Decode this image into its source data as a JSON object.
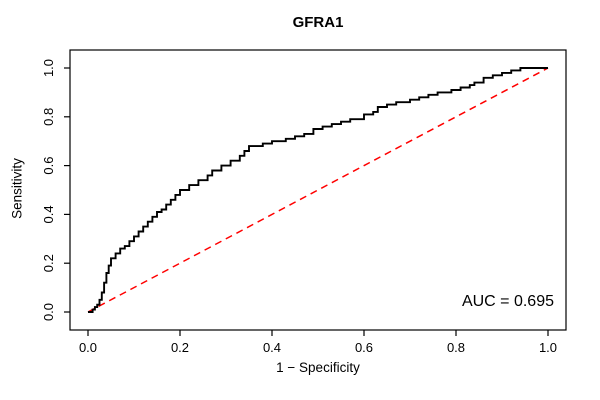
{
  "chart_data": {
    "type": "line",
    "title": "GFRA1",
    "xlabel": "1 − Specificity",
    "ylabel": "Sensitivity",
    "xlim": [
      0,
      1
    ],
    "ylim": [
      0,
      1
    ],
    "grid": false,
    "x_ticks": [
      "0.0",
      "0.2",
      "0.4",
      "0.6",
      "0.8",
      "1.0"
    ],
    "y_ticks": [
      "0.0",
      "0.2",
      "0.4",
      "0.6",
      "0.8",
      "1.0"
    ],
    "annotation": "AUC = 0.695",
    "auc": 0.695,
    "series": [
      {
        "name": "chance-line",
        "style": "dashed",
        "color": "#ff0000",
        "points": [
          [
            0,
            0
          ],
          [
            1,
            1
          ]
        ]
      },
      {
        "name": "roc-curve",
        "style": "step",
        "color": "#000000",
        "points": [
          [
            0,
            0
          ],
          [
            0.01,
            0.01
          ],
          [
            0.015,
            0.02
          ],
          [
            0.02,
            0.03
          ],
          [
            0.025,
            0.05
          ],
          [
            0.03,
            0.08
          ],
          [
            0.035,
            0.12
          ],
          [
            0.04,
            0.16
          ],
          [
            0.045,
            0.19
          ],
          [
            0.05,
            0.22
          ],
          [
            0.06,
            0.24
          ],
          [
            0.07,
            0.26
          ],
          [
            0.08,
            0.27
          ],
          [
            0.09,
            0.29
          ],
          [
            0.1,
            0.31
          ],
          [
            0.11,
            0.33
          ],
          [
            0.12,
            0.35
          ],
          [
            0.13,
            0.37
          ],
          [
            0.14,
            0.39
          ],
          [
            0.15,
            0.41
          ],
          [
            0.16,
            0.42
          ],
          [
            0.17,
            0.44
          ],
          [
            0.18,
            0.46
          ],
          [
            0.19,
            0.48
          ],
          [
            0.2,
            0.5
          ],
          [
            0.22,
            0.52
          ],
          [
            0.24,
            0.54
          ],
          [
            0.26,
            0.56
          ],
          [
            0.27,
            0.58
          ],
          [
            0.29,
            0.6
          ],
          [
            0.31,
            0.62
          ],
          [
            0.33,
            0.64
          ],
          [
            0.34,
            0.66
          ],
          [
            0.35,
            0.68
          ],
          [
            0.38,
            0.69
          ],
          [
            0.4,
            0.7
          ],
          [
            0.43,
            0.71
          ],
          [
            0.45,
            0.72
          ],
          [
            0.47,
            0.73
          ],
          [
            0.49,
            0.75
          ],
          [
            0.51,
            0.76
          ],
          [
            0.53,
            0.77
          ],
          [
            0.55,
            0.78
          ],
          [
            0.57,
            0.79
          ],
          [
            0.6,
            0.81
          ],
          [
            0.62,
            0.82
          ],
          [
            0.63,
            0.84
          ],
          [
            0.65,
            0.85
          ],
          [
            0.67,
            0.86
          ],
          [
            0.7,
            0.87
          ],
          [
            0.72,
            0.88
          ],
          [
            0.74,
            0.89
          ],
          [
            0.76,
            0.9
          ],
          [
            0.79,
            0.91
          ],
          [
            0.81,
            0.92
          ],
          [
            0.83,
            0.93
          ],
          [
            0.84,
            0.94
          ],
          [
            0.86,
            0.96
          ],
          [
            0.88,
            0.97
          ],
          [
            0.9,
            0.98
          ],
          [
            0.92,
            0.99
          ],
          [
            0.94,
            1.0
          ],
          [
            1.0,
            1.0
          ]
        ]
      }
    ]
  }
}
